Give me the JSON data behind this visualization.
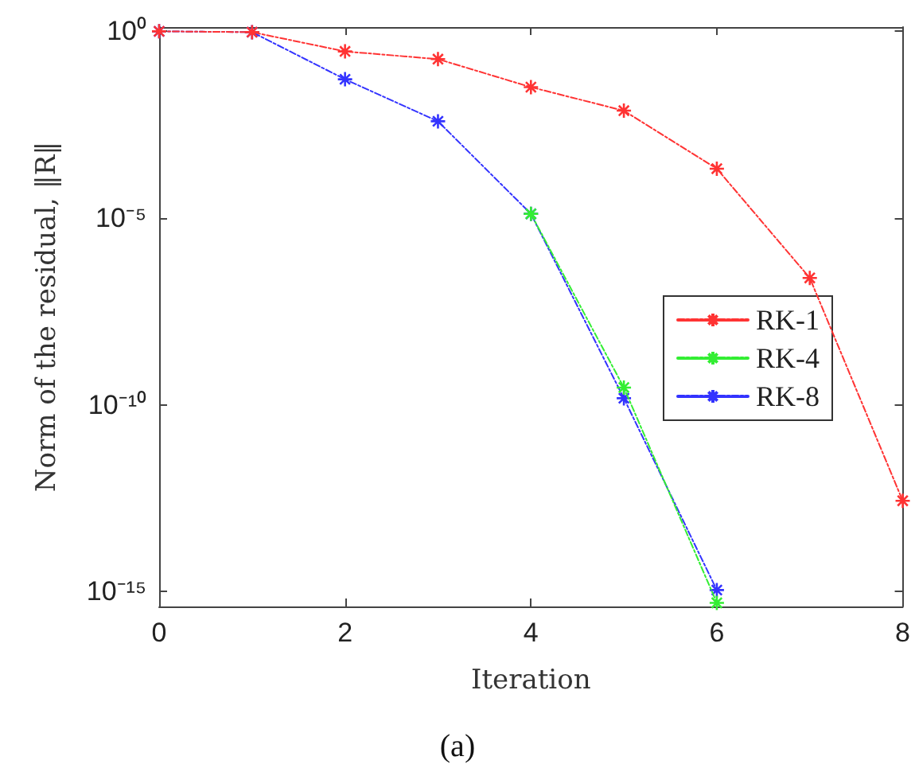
{
  "chart_data": {
    "type": "line",
    "xlabel": "Iteration",
    "ylabel": "Norm of the residual, ‖R‖",
    "annotations": [
      "(a)"
    ],
    "x": [
      0,
      1,
      2,
      3,
      4,
      5,
      6,
      7,
      8
    ],
    "series": [
      {
        "name": "RK-1",
        "color": "#ff3333",
        "values": [
          1,
          0.95,
          0.29,
          0.18,
          0.032,
          0.0075,
          0.00021,
          2.5e-07,
          2.7e-13
        ]
      },
      {
        "name": "RK-4",
        "color": "#33ee33",
        "values": [
          null,
          null,
          null,
          null,
          1.3e-05,
          2.9e-10,
          5e-16,
          null,
          null
        ]
      },
      {
        "name": "RK-8",
        "color": "#3333ff",
        "values": [
          1,
          0.95,
          0.052,
          0.0039,
          1.3e-05,
          1.5e-10,
          1.1e-15,
          null,
          null
        ]
      }
    ],
    "xlim": [
      0,
      8
    ],
    "xticks": [
      0,
      2,
      4,
      6,
      8
    ],
    "ylim": [
      4e-16,
      1.3
    ],
    "yticks": [
      {
        "value": 1,
        "label": "10⁰"
      },
      {
        "value": 1e-05,
        "label": "10⁻⁵"
      },
      {
        "value": 1e-10,
        "label": "10⁻¹⁰"
      },
      {
        "value": 1e-15,
        "label": "10⁻¹⁵"
      }
    ],
    "log": "y",
    "grid": false,
    "legend": "right",
    "marker": "cross",
    "line_style": "dashed"
  }
}
